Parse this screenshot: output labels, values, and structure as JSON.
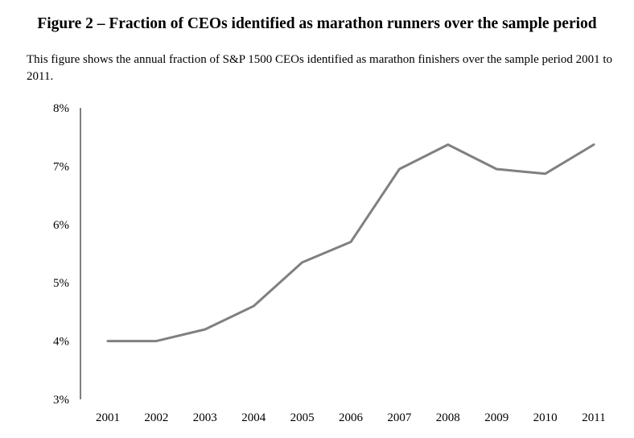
{
  "figure": {
    "title": "Figure 2 – Fraction of CEOs identified as marathon runners over the sample period",
    "caption": "This figure shows the annual fraction of S&P 1500 CEOs identified as marathon finishers over the sample period 2001 to 2011."
  },
  "chart_data": {
    "type": "line",
    "title": "",
    "xlabel": "",
    "ylabel": "",
    "x": [
      2001,
      2002,
      2003,
      2004,
      2005,
      2006,
      2007,
      2008,
      2009,
      2010,
      2011
    ],
    "series": [
      {
        "values": [
          4.0,
          4.0,
          4.2,
          4.6,
          5.35,
          5.7,
          6.95,
          7.37,
          6.95,
          6.87,
          7.37
        ]
      }
    ],
    "ylim": [
      3,
      8
    ],
    "y_ticks": [
      3,
      4,
      5,
      6,
      7,
      8
    ],
    "y_tick_labels": [
      "3%",
      "4%",
      "5%",
      "6%",
      "7%",
      "8%"
    ],
    "x_tick_labels": [
      "2001",
      "2002",
      "2003",
      "2004",
      "2005",
      "2006",
      "2007",
      "2008",
      "2009",
      "2010",
      "2011"
    ],
    "grid": false,
    "legend": "none",
    "line_color": "#808080"
  }
}
